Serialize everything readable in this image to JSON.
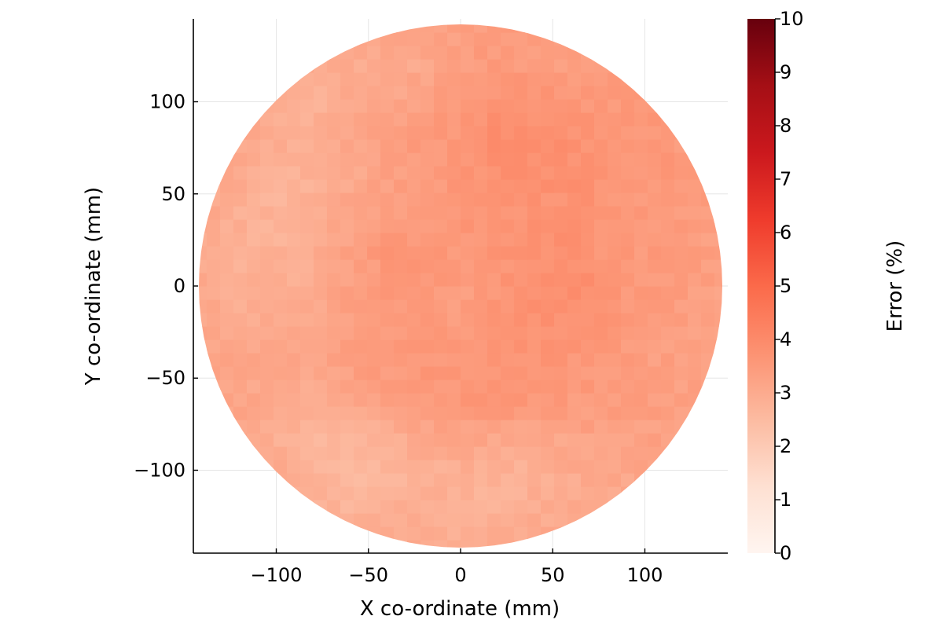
{
  "chart_data": {
    "type": "heatmap",
    "title": "",
    "xlabel": "X co-ordinate (mm)",
    "ylabel": "Y co-ordinate (mm)",
    "colorbar_label": "Error (%)",
    "xlim": [
      -145,
      145
    ],
    "ylim": [
      -145,
      145
    ],
    "x_ticks": [
      -100,
      -50,
      0,
      50,
      100
    ],
    "x_tick_labels": [
      "−100",
      "−50",
      "0",
      "50",
      "100"
    ],
    "y_ticks": [
      -100,
      -50,
      0,
      50,
      100
    ],
    "y_tick_labels": [
      "−100",
      "−50",
      "0",
      "50",
      "100"
    ],
    "colorbar_range": [
      0,
      10
    ],
    "colorbar_ticks": [
      0,
      1,
      2,
      3,
      4,
      5,
      6,
      7,
      8,
      9,
      10
    ],
    "colorbar_tick_labels": [
      "0",
      "1",
      "2",
      "3",
      "4",
      "5",
      "6",
      "7",
      "8",
      "9",
      "10"
    ],
    "colormap": [
      "#fff5f0",
      "#fee0d2",
      "#fcbba1",
      "#fc9272",
      "#fb6a4a",
      "#ef3b2c",
      "#cb181d",
      "#a50f15",
      "#67000d"
    ],
    "grid": true,
    "x": [
      -140,
      -120,
      -100,
      -80,
      -60,
      -40,
      -20,
      0,
      20,
      40,
      60,
      80,
      100,
      120,
      140
    ],
    "y": [
      -140,
      -120,
      -100,
      -80,
      -60,
      -40,
      -20,
      0,
      20,
      40,
      60,
      80,
      100,
      120,
      140
    ],
    "z": [
      [
        null,
        null,
        null,
        null,
        null,
        3.0,
        3.0,
        2.9,
        3.0,
        3.1,
        null,
        null,
        null,
        null,
        null
      ],
      [
        null,
        null,
        null,
        2.8,
        2.7,
        2.8,
        2.9,
        2.8,
        2.7,
        2.9,
        3.0,
        3.0,
        null,
        null,
        null
      ],
      [
        null,
        null,
        3.0,
        2.7,
        2.6,
        2.7,
        2.8,
        2.9,
        2.8,
        2.8,
        3.0,
        3.1,
        3.2,
        null,
        null
      ],
      [
        null,
        3.1,
        2.9,
        2.6,
        2.7,
        2.9,
        3.1,
        3.2,
        3.2,
        3.1,
        3.2,
        3.3,
        3.3,
        3.3,
        null
      ],
      [
        null,
        3.2,
        3.0,
        2.9,
        3.1,
        3.4,
        3.5,
        3.6,
        3.7,
        3.6,
        3.5,
        3.5,
        3.4,
        3.3,
        null
      ],
      [
        3.2,
        3.1,
        3.1,
        3.2,
        3.4,
        3.5,
        3.6,
        3.5,
        3.7,
        3.7,
        3.6,
        3.5,
        3.4,
        3.3,
        3.2
      ],
      [
        3.1,
        3.0,
        3.0,
        3.1,
        3.3,
        3.4,
        3.5,
        3.4,
        3.6,
        3.7,
        3.8,
        3.6,
        3.5,
        3.4,
        3.2
      ],
      [
        3.0,
        2.9,
        2.9,
        3.0,
        3.3,
        3.5,
        3.6,
        3.4,
        3.6,
        3.8,
        3.9,
        3.7,
        3.5,
        3.4,
        3.3
      ],
      [
        3.0,
        2.8,
        2.8,
        2.9,
        3.3,
        3.6,
        3.6,
        3.5,
        3.7,
        3.8,
        3.8,
        3.6,
        3.5,
        3.5,
        3.3
      ],
      [
        3.1,
        2.9,
        2.7,
        2.8,
        3.2,
        3.4,
        3.5,
        3.6,
        3.7,
        3.7,
        3.7,
        3.6,
        3.5,
        3.5,
        3.4
      ],
      [
        null,
        3.0,
        2.8,
        2.8,
        3.0,
        3.3,
        3.4,
        3.6,
        3.8,
        3.8,
        3.8,
        3.7,
        3.6,
        3.5,
        null
      ],
      [
        null,
        3.1,
        2.9,
        2.9,
        3.1,
        3.3,
        3.5,
        3.6,
        3.9,
        3.9,
        3.8,
        3.7,
        3.6,
        3.5,
        null
      ],
      [
        null,
        null,
        3.0,
        2.8,
        3.0,
        3.1,
        3.3,
        3.5,
        3.7,
        3.7,
        3.6,
        3.5,
        3.5,
        null,
        null
      ],
      [
        null,
        null,
        null,
        3.0,
        3.0,
        3.0,
        3.1,
        3.4,
        3.5,
        3.4,
        3.4,
        3.4,
        null,
        null,
        null
      ],
      [
        null,
        null,
        null,
        null,
        null,
        3.2,
        3.2,
        3.3,
        3.4,
        3.4,
        null,
        null,
        null,
        null,
        null
      ]
    ]
  }
}
